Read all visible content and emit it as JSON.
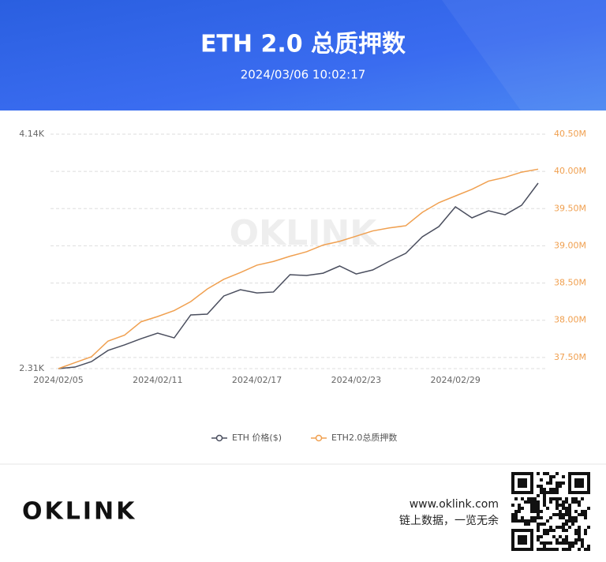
{
  "header": {
    "title": "ETH 2.0 总质押数",
    "datetime": "2024/03/06 10:02:17"
  },
  "watermark": "OKLINK",
  "chart_data": {
    "type": "line",
    "categories": [
      "2024/02/05",
      null,
      null,
      null,
      null,
      null,
      "2024/02/11",
      null,
      null,
      null,
      null,
      null,
      "2024/02/17",
      null,
      null,
      null,
      null,
      null,
      "2024/02/23",
      null,
      null,
      null,
      null,
      null,
      "2024/02/29",
      null,
      null,
      null,
      null,
      null
    ],
    "series": [
      {
        "name": "ETH 价格($)",
        "color": "#4a4e5e",
        "values": [
          2310,
          2322,
          2365,
          2452,
          2495,
          2544,
          2587,
          2550,
          2729,
          2735,
          2877,
          2926,
          2901,
          2908,
          3043,
          3037,
          3055,
          3111,
          3049,
          3080,
          3148,
          3210,
          3339,
          3419,
          3573,
          3487,
          3542,
          3511,
          3585,
          3758
        ]
      },
      {
        "name": "ETH2.0总质押数",
        "color": "#f0a050",
        "axis": "y2",
        "values": [
          37.35,
          37.43,
          37.51,
          37.72,
          37.8,
          37.98,
          38.05,
          38.13,
          38.25,
          38.42,
          38.55,
          38.64,
          38.74,
          38.79,
          38.86,
          38.92,
          39.01,
          39.06,
          39.13,
          39.2,
          39.24,
          39.27,
          39.45,
          39.58,
          39.67,
          39.76,
          39.87,
          39.92,
          39.99,
          40.03
        ]
      }
    ],
    "ylim": [
      2310,
      4140
    ],
    "yticks": [
      {
        "value": 2310,
        "label": "2.31K"
      },
      {
        "value": 4140,
        "label": "4.14K"
      }
    ],
    "y2lim": [
      37.35,
      40.5
    ],
    "y2ticks": [
      {
        "value": 37.5,
        "label": "37.50M"
      },
      {
        "value": 38,
        "label": "38.00M"
      },
      {
        "value": 38.5,
        "label": "38.50M"
      },
      {
        "value": 39,
        "label": "39.00M"
      },
      {
        "value": 39.5,
        "label": "39.50M"
      },
      {
        "value": 40,
        "label": "40.00M"
      },
      {
        "value": 40.5,
        "label": "40.50M"
      }
    ],
    "grid": true
  },
  "footer": {
    "logo": "OKLINK",
    "url": "www.oklink.com",
    "slogan": "链上数据，一览无余"
  }
}
